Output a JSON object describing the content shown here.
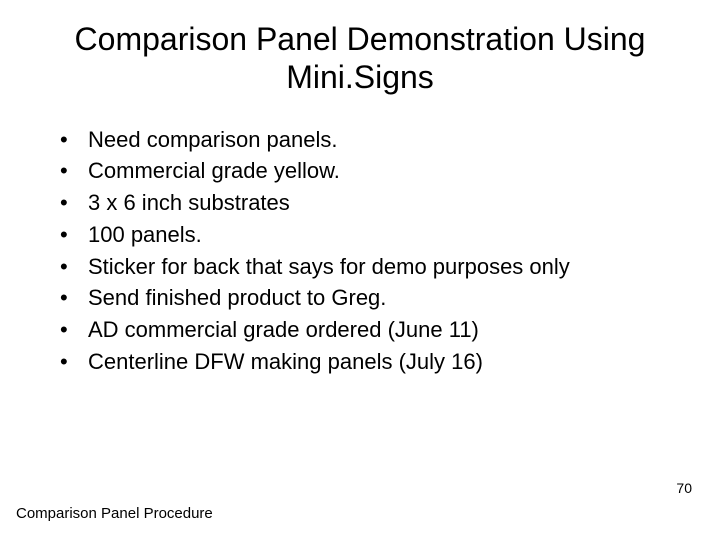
{
  "title": "Comparison Panel Demonstration Using Mini.Signs",
  "bullets": [
    "Need comparison panels.",
    "Commercial grade yellow.",
    "3 x 6 inch substrates",
    "100 panels.",
    "Sticker for back that says for demo purposes only",
    "Send finished product to Greg.",
    "AD commercial grade ordered (June 11)",
    "Centerline DFW making panels (July 16)"
  ],
  "pageNumber": "70",
  "footer": "Comparison Panel Procedure",
  "colors": {
    "background": "#ffffff",
    "text": "#000000"
  },
  "fonts": {
    "title_size": 32,
    "body_size": 22,
    "footer_size": 15,
    "page_number_size": 14
  }
}
